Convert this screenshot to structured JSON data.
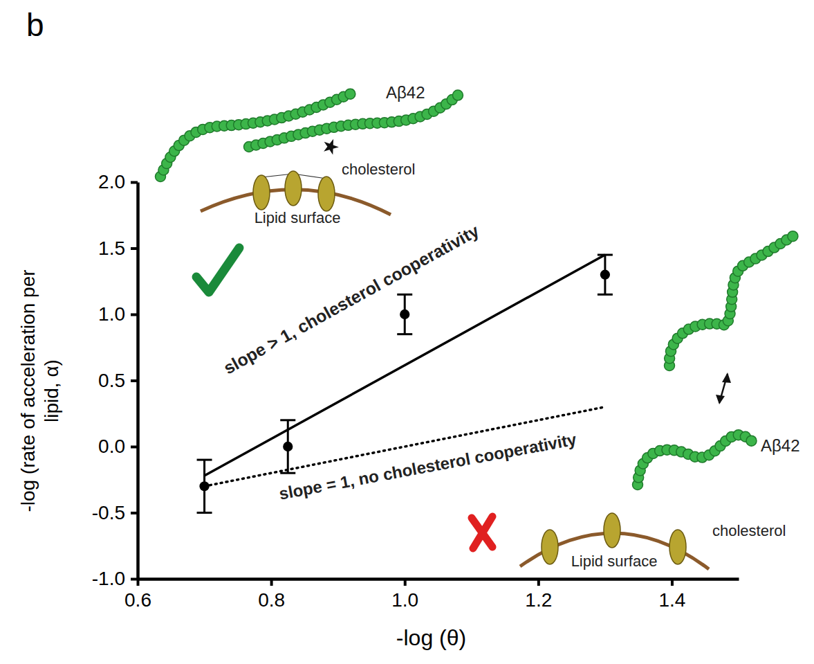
{
  "chart_data": {
    "type": "scatter",
    "panel_label": "b",
    "x_label": "-log (θ)",
    "y_label": "-log (rate of acceleration per lipid, α)",
    "xlim": [
      0.6,
      1.5
    ],
    "ylim": [
      -1.0,
      2.0
    ],
    "xticks": [
      0.6,
      0.8,
      {
        "value": 1,
        "label": "1.0"
      },
      1.2,
      1.4
    ],
    "yticks": [
      {
        "value": -1,
        "label": "-1.0"
      },
      -0.5,
      {
        "value": 0,
        "label": "0.0"
      },
      0.5,
      {
        "value": 1,
        "label": "1.0"
      },
      1.5,
      {
        "value": 2,
        "label": "2.0"
      }
    ],
    "grid": false,
    "series": [
      {
        "type": "scatter",
        "color": "#000000",
        "marker": "circle",
        "x": [
          0.7,
          0.825,
          1.0,
          1.3
        ],
        "values": [
          -0.3,
          0.0,
          1.0,
          1.3
        ],
        "errors": [
          0.2,
          0.2,
          0.15,
          0.15
        ]
      },
      {
        "type": "line",
        "color": "#000000",
        "line_style": "solid",
        "x": [
          0.7,
          1.3
        ],
        "values": [
          -0.22,
          1.45
        ]
      },
      {
        "type": "line",
        "color": "#000000",
        "line_style": "dotted",
        "x": [
          0.7,
          1.3
        ],
        "values": [
          -0.3,
          0.3
        ]
      }
    ],
    "annotations": [
      "Aβ42",
      "cholesterol",
      "Lipid surface",
      "slope > 1, cholesterol cooperativity",
      "slope = 1, no cholesterol cooperativity",
      "Aβ42",
      "cholesterol",
      "Lipid surface"
    ]
  }
}
